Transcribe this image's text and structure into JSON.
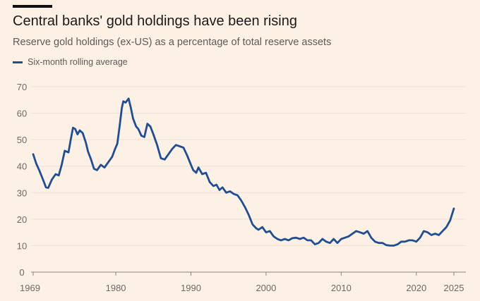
{
  "header": {
    "title": "Central banks' gold holdings have been rising",
    "subtitle": "Reserve gold holdings (ex-US) as a percentage of total reserve assets"
  },
  "legend": {
    "label": "Six-month rolling average"
  },
  "colors": {
    "line": "#1f4e96",
    "grid": "#ede0d4",
    "axis": "#8a8480",
    "background": "#fdf1e6"
  },
  "chart_data": {
    "type": "line",
    "title": "Central banks' gold holdings have been rising",
    "subtitle": "Reserve gold holdings (ex-US) as a percentage of total reserve assets",
    "xlabel": "",
    "ylabel": "",
    "xlim": [
      1969,
      2025
    ],
    "ylim": [
      0,
      70
    ],
    "x_ticks": [
      1969,
      1980,
      1990,
      2000,
      2010,
      2020,
      2025
    ],
    "y_ticks": [
      0,
      10,
      20,
      30,
      40,
      50,
      60,
      70
    ],
    "legend_position": "top-left",
    "series": [
      {
        "name": "Six-month rolling average",
        "x": [
          1969.0,
          1969.4,
          1969.8,
          1970.3,
          1970.7,
          1971.0,
          1971.5,
          1972.0,
          1972.4,
          1972.8,
          1973.2,
          1973.7,
          1974.0,
          1974.3,
          1974.6,
          1974.9,
          1975.2,
          1975.6,
          1976.0,
          1976.3,
          1976.7,
          1977.1,
          1977.5,
          1978.0,
          1978.5,
          1979.0,
          1979.5,
          1979.9,
          1980.2,
          1980.5,
          1980.8,
          1981.0,
          1981.3,
          1981.7,
          1982.0,
          1982.3,
          1982.7,
          1983.0,
          1983.4,
          1983.8,
          1984.2,
          1984.6,
          1985.0,
          1985.5,
          1986.0,
          1986.5,
          1987.0,
          1987.5,
          1988.0,
          1988.5,
          1989.0,
          1989.5,
          1990.0,
          1990.3,
          1990.7,
          1991.0,
          1991.5,
          1992.0,
          1992.5,
          1993.0,
          1993.4,
          1993.8,
          1994.2,
          1994.7,
          1995.2,
          1995.7,
          1996.2,
          1996.7,
          1997.2,
          1997.7,
          1998.2,
          1998.7,
          1999.0,
          1999.5,
          2000.0,
          2000.5,
          2001.0,
          2001.5,
          2002.0,
          2002.5,
          2003.0,
          2003.5,
          2004.0,
          2004.5,
          2005.0,
          2005.5,
          2006.0,
          2006.5,
          2007.0,
          2007.5,
          2008.0,
          2008.5,
          2009.0,
          2009.5,
          2010.0,
          2010.5,
          2011.0,
          2011.5,
          2012.0,
          2012.5,
          2013.0,
          2013.5,
          2014.0,
          2014.5,
          2015.0,
          2015.5,
          2016.0,
          2016.5,
          2017.0,
          2017.5,
          2018.0,
          2018.5,
          2019.0,
          2019.5,
          2020.0,
          2020.5,
          2021.0,
          2021.5,
          2022.0,
          2022.5,
          2023.0,
          2023.5,
          2024.0,
          2024.5,
          2025.0
        ],
        "values": [
          44.5,
          41.0,
          38.5,
          35.0,
          32.0,
          31.8,
          35.0,
          37.0,
          36.5,
          40.5,
          45.8,
          45.2,
          50.0,
          54.5,
          54.0,
          52.0,
          53.5,
          52.5,
          49.0,
          45.5,
          42.5,
          39.0,
          38.5,
          40.5,
          39.5,
          41.5,
          43.5,
          46.5,
          48.5,
          55.0,
          62.0,
          64.5,
          64.0,
          65.5,
          62.0,
          58.0,
          55.0,
          54.0,
          51.5,
          51.0,
          56.0,
          55.0,
          52.0,
          48.0,
          43.0,
          42.5,
          44.5,
          46.5,
          48.0,
          47.5,
          47.0,
          44.0,
          40.5,
          38.5,
          37.5,
          39.5,
          37.0,
          37.5,
          34.0,
          32.5,
          33.0,
          31.0,
          32.0,
          30.0,
          30.5,
          29.5,
          29.0,
          27.0,
          24.5,
          21.5,
          18.0,
          16.5,
          16.0,
          17.0,
          15.0,
          15.5,
          13.5,
          12.5,
          12.0,
          12.5,
          12.0,
          12.8,
          13.0,
          12.5,
          13.0,
          12.0,
          12.0,
          10.5,
          11.0,
          12.5,
          11.5,
          11.0,
          12.5,
          11.0,
          12.5,
          13.0,
          13.5,
          14.5,
          15.5,
          15.0,
          14.5,
          15.5,
          13.0,
          11.5,
          11.0,
          11.0,
          10.2,
          10.0,
          10.0,
          10.5,
          11.5,
          11.5,
          12.0,
          12.0,
          11.5,
          13.0,
          15.5,
          15.0,
          14.0,
          14.5,
          14.0,
          15.5,
          17.0,
          19.5,
          24.0
        ]
      }
    ]
  }
}
